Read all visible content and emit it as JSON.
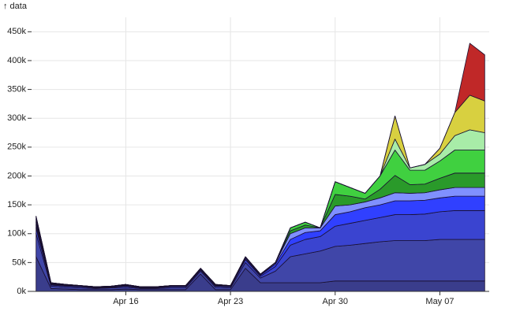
{
  "chart_data": {
    "type": "stacked-area",
    "y_label": "↑ data",
    "x": [
      "Apr 10",
      "Apr 11",
      "Apr 12",
      "Apr 13",
      "Apr 14",
      "Apr 15",
      "Apr 16",
      "Apr 17",
      "Apr 18",
      "Apr 19",
      "Apr 20",
      "Apr 21",
      "Apr 22",
      "Apr 23",
      "Apr 24",
      "Apr 25",
      "Apr 26",
      "Apr 27",
      "Apr 28",
      "Apr 29",
      "Apr 30",
      "May 01",
      "May 02",
      "May 03",
      "May 04",
      "May 05",
      "May 06",
      "May 07",
      "May 08",
      "May 09",
      "May 10"
    ],
    "xticks": [
      "Apr 16",
      "Apr 23",
      "Apr 30",
      "May 07"
    ],
    "ylim": [
      0,
      475000
    ],
    "yticks": [
      {
        "value": 0,
        "label": "0k"
      },
      {
        "value": 50000,
        "label": "50k"
      },
      {
        "value": 100000,
        "label": "100k"
      },
      {
        "value": 150000,
        "label": "150k"
      },
      {
        "value": 200000,
        "label": "200k"
      },
      {
        "value": 250000,
        "label": "250k"
      },
      {
        "value": 300000,
        "label": "300k"
      },
      {
        "value": 350000,
        "label": "350k"
      },
      {
        "value": 400000,
        "label": "400k"
      },
      {
        "value": 450000,
        "label": "450k"
      }
    ],
    "grid": true,
    "series": [
      {
        "color": "#3a3d8c",
        "values": [
          60000,
          5000,
          4000,
          3000,
          3000,
          3000,
          4000,
          3000,
          3000,
          3000,
          3000,
          30000,
          3000,
          3000,
          40000,
          15000,
          15000,
          15000,
          15000,
          15000,
          18000,
          18000,
          18000,
          18000,
          18000,
          18000,
          18000,
          18000,
          18000,
          18000,
          18000
        ]
      },
      {
        "color": "#4046a8",
        "values": [
          40000,
          4000,
          3000,
          3000,
          2000,
          3000,
          3000,
          2000,
          2000,
          3000,
          3000,
          5000,
          4000,
          3000,
          10000,
          8000,
          20000,
          45000,
          50000,
          55000,
          60000,
          62000,
          65000,
          68000,
          70000,
          70000,
          70000,
          72000,
          72000,
          72000,
          72000
        ]
      },
      {
        "color": "#3a44d0",
        "values": [
          10000,
          2000,
          2000,
          2000,
          1000,
          1000,
          2000,
          1000,
          1000,
          2000,
          2000,
          2000,
          2000,
          2000,
          5000,
          3000,
          8000,
          20000,
          25000,
          25000,
          35000,
          38000,
          40000,
          42000,
          45000,
          45000,
          46000,
          48000,
          50000,
          50000,
          50000
        ]
      },
      {
        "color": "#3040ff",
        "values": [
          5000,
          1000,
          1000,
          1000,
          1000,
          1000,
          1000,
          1000,
          1000,
          1000,
          1000,
          1000,
          1000,
          1000,
          2000,
          2000,
          4000,
          10000,
          12000,
          10000,
          20000,
          20000,
          22000,
          22000,
          24000,
          24000,
          24000,
          24000,
          25000,
          25000,
          25000
        ]
      },
      {
        "color": "#8090ff",
        "values": [
          5000,
          1000,
          1000,
          0,
          0,
          0,
          1000,
          0,
          0,
          0,
          0,
          1000,
          1000,
          0,
          2000,
          1000,
          2000,
          10000,
          8000,
          5000,
          15000,
          12000,
          10000,
          12000,
          14000,
          13000,
          13000,
          14000,
          15000,
          15000,
          15000
        ]
      },
      {
        "color": "#2a9a2a",
        "values": [
          5000,
          1000,
          1000,
          1000,
          1000,
          1000,
          1000,
          1000,
          1000,
          1000,
          1000,
          1000,
          1000,
          1000,
          1000,
          1000,
          1000,
          5000,
          5000,
          0,
          20000,
          15000,
          5000,
          15000,
          30000,
          15000,
          15000,
          20000,
          25000,
          25000,
          25000
        ]
      },
      {
        "color": "#40d040",
        "values": [
          5000,
          1000,
          0,
          0,
          0,
          0,
          0,
          0,
          0,
          0,
          0,
          0,
          0,
          0,
          0,
          0,
          0,
          5000,
          5000,
          0,
          22000,
          15000,
          10000,
          23000,
          44000,
          25000,
          24000,
          30000,
          40000,
          40000,
          40000
        ]
      },
      {
        "color": "#a8eca8",
        "values": [
          0,
          0,
          0,
          0,
          0,
          0,
          0,
          0,
          0,
          0,
          0,
          0,
          0,
          0,
          0,
          0,
          0,
          0,
          0,
          0,
          0,
          0,
          0,
          0,
          19000,
          4000,
          10000,
          12000,
          25000,
          35000,
          30000
        ]
      },
      {
        "color": "#d8d040",
        "values": [
          0,
          0,
          0,
          0,
          0,
          0,
          0,
          0,
          0,
          0,
          0,
          0,
          0,
          0,
          0,
          0,
          0,
          0,
          0,
          0,
          0,
          0,
          0,
          0,
          40000,
          0,
          0,
          10000,
          40000,
          60000,
          55000
        ]
      },
      {
        "color": "#c02828",
        "values": [
          0,
          0,
          0,
          0,
          0,
          0,
          0,
          0,
          0,
          0,
          0,
          0,
          0,
          0,
          0,
          0,
          0,
          0,
          0,
          0,
          0,
          0,
          0,
          0,
          0,
          0,
          0,
          0,
          0,
          90000,
          80000
        ]
      }
    ]
  }
}
